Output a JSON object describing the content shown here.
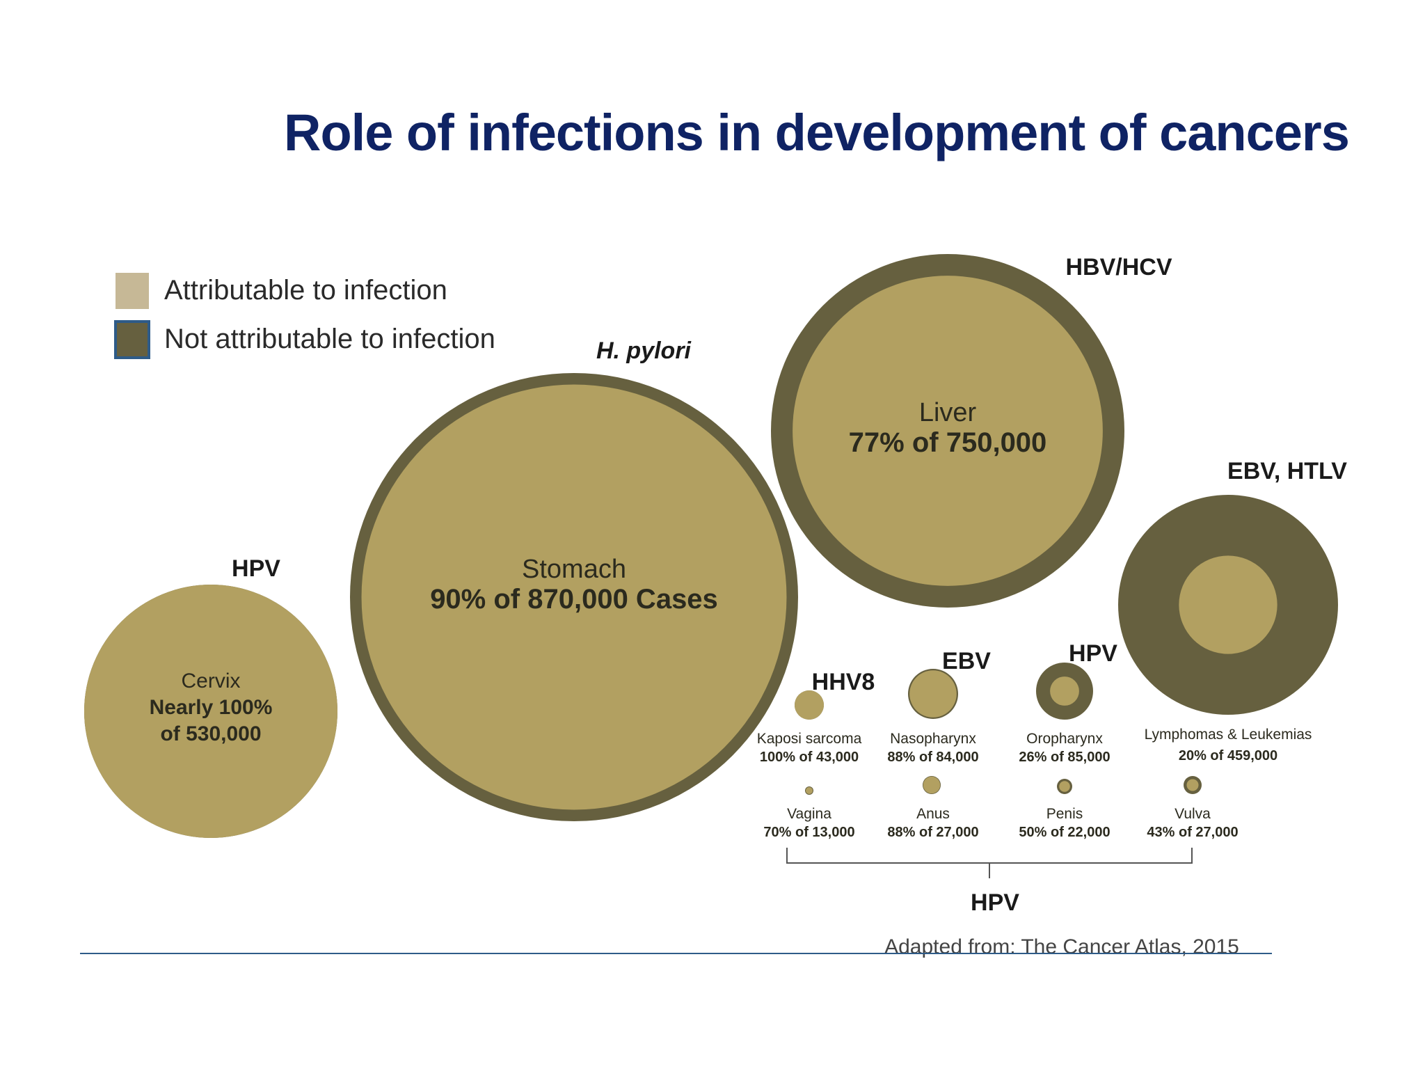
{
  "title": "Role of infections in development of cancers",
  "legend": [
    {
      "label": "Attributable to infection",
      "color": "#c6b896"
    },
    {
      "label": "Not attributable to infection",
      "color": "#66603f"
    }
  ],
  "colors": {
    "attributable": "#b2a061",
    "not_attributable": "#66603f",
    "title": "#0f2364",
    "rule": "#2e5b88"
  },
  "hpv_group_label": "HPV",
  "source": "Adapted from: The Cancer Atlas, 2015",
  "chart_data": {
    "type": "bubble",
    "title": "Role of infections in development of cancers",
    "unit": "cases",
    "bubbles": [
      {
        "cancer": "Cervix",
        "agent": "HPV",
        "total_cases": 530000,
        "attributable_pct": 100,
        "label_value": "Nearly 100%",
        "label_value2": "of 530,000"
      },
      {
        "cancer": "Stomach",
        "agent": "H. pylori",
        "total_cases": 870000,
        "attributable_pct": 90,
        "label_value": "90% of 870,000 Cases"
      },
      {
        "cancer": "Liver",
        "agent": "HBV/HCV",
        "total_cases": 750000,
        "attributable_pct": 77,
        "label_value": "77% of 750,000"
      },
      {
        "cancer": "Lymphomas & Leukemias",
        "agent": "EBV, HTLV",
        "total_cases": 459000,
        "attributable_pct": 20,
        "label_value": "20% of 459,000"
      },
      {
        "cancer": "Kaposi sarcoma",
        "agent": "HHV8",
        "total_cases": 43000,
        "attributable_pct": 100,
        "label_value": "100% of 43,000"
      },
      {
        "cancer": "Nasopharynx",
        "agent": "EBV",
        "total_cases": 84000,
        "attributable_pct": 88,
        "label_value": "88% of 84,000"
      },
      {
        "cancer": "Oropharynx",
        "agent": "HPV",
        "total_cases": 85000,
        "attributable_pct": 26,
        "label_value": "26% of 85,000"
      },
      {
        "cancer": "Vagina",
        "agent": "HPV",
        "total_cases": 13000,
        "attributable_pct": 70,
        "label_value": "70% of 13,000"
      },
      {
        "cancer": "Anus",
        "agent": "HPV",
        "total_cases": 27000,
        "attributable_pct": 88,
        "label_value": "88% of 27,000"
      },
      {
        "cancer": "Penis",
        "agent": "HPV",
        "total_cases": 22000,
        "attributable_pct": 50,
        "label_value": "50% of 22,000"
      },
      {
        "cancer": "Vulva",
        "agent": "HPV",
        "total_cases": 27000,
        "attributable_pct": 43,
        "label_value": "43% of 27,000"
      }
    ]
  }
}
